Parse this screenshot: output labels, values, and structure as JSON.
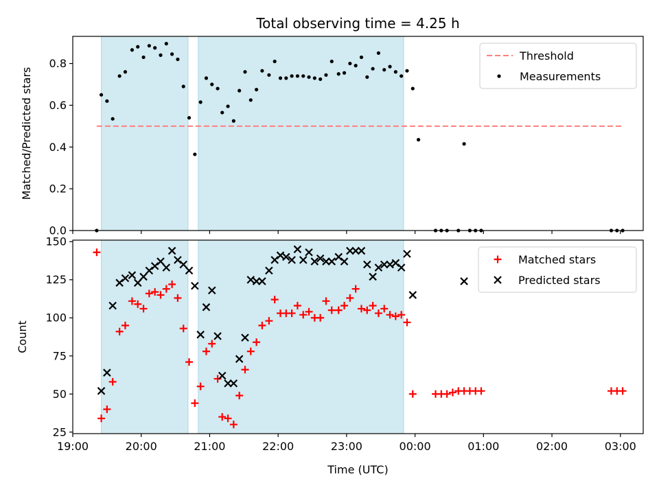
{
  "colors": {
    "shade": "#add8e6",
    "threshold": "#ff7f7f",
    "measurements": "#000000",
    "matched": "#ff0000",
    "predicted": "#000000"
  },
  "chart_data": [
    {
      "type": "scatter",
      "title": "Total observing time = 4.25 h",
      "ylabel": "Matched/Predicted stars",
      "xlabel": "",
      "xlim": [
        "19:00",
        "03:20"
      ],
      "ylim": [
        0,
        0.93
      ],
      "yticks": [
        0.0,
        0.2,
        0.4,
        0.6,
        0.8
      ],
      "yticklabels": [
        "0.0",
        "0.2",
        "0.4",
        "0.6",
        "0.8"
      ],
      "shaded_intervals": [
        [
          "19:25",
          "20:41"
        ],
        [
          "20:50",
          "23:50"
        ]
      ],
      "threshold": {
        "name": "Threshold",
        "value": 0.5,
        "x_range": [
          "19:21",
          "03:01"
        ]
      },
      "legend": {
        "position": "upper right",
        "entries": [
          "Threshold",
          "Measurements"
        ]
      },
      "series": [
        {
          "name": "Measurements",
          "marker": "dot",
          "points": [
            [
              "19:21",
              0.0
            ],
            [
              "19:25",
              0.65
            ],
            [
              "19:30",
              0.62
            ],
            [
              "19:35",
              0.535
            ],
            [
              "19:41",
              0.74
            ],
            [
              "19:46",
              0.76
            ],
            [
              "19:52",
              0.865
            ],
            [
              "19:57",
              0.88
            ],
            [
              "20:02",
              0.83
            ],
            [
              "20:07",
              0.885
            ],
            [
              "20:12",
              0.875
            ],
            [
              "20:17",
              0.84
            ],
            [
              "20:22",
              0.895
            ],
            [
              "20:27",
              0.845
            ],
            [
              "20:32",
              0.82
            ],
            [
              "20:37",
              0.69
            ],
            [
              "20:42",
              0.54
            ],
            [
              "20:47",
              0.365
            ],
            [
              "20:52",
              0.615
            ],
            [
              "20:57",
              0.73
            ],
            [
              "21:02",
              0.7
            ],
            [
              "21:07",
              0.68
            ],
            [
              "21:11",
              0.565
            ],
            [
              "21:16",
              0.595
            ],
            [
              "21:21",
              0.525
            ],
            [
              "21:26",
              0.67
            ],
            [
              "21:31",
              0.76
            ],
            [
              "21:36",
              0.625
            ],
            [
              "21:41",
              0.675
            ],
            [
              "21:46",
              0.765
            ],
            [
              "21:52",
              0.745
            ],
            [
              "21:57",
              0.81
            ],
            [
              "22:02",
              0.73
            ],
            [
              "22:07",
              0.73
            ],
            [
              "22:12",
              0.74
            ],
            [
              "22:17",
              0.74
            ],
            [
              "22:22",
              0.74
            ],
            [
              "22:27",
              0.735
            ],
            [
              "22:32",
              0.73
            ],
            [
              "22:37",
              0.725
            ],
            [
              "22:42",
              0.745
            ],
            [
              "22:47",
              0.81
            ],
            [
              "22:53",
              0.75
            ],
            [
              "22:58",
              0.755
            ],
            [
              "23:03",
              0.8
            ],
            [
              "23:08",
              0.79
            ],
            [
              "23:13",
              0.83
            ],
            [
              "23:18",
              0.735
            ],
            [
              "23:23",
              0.775
            ],
            [
              "23:28",
              0.85
            ],
            [
              "23:33",
              0.77
            ],
            [
              "23:38",
              0.785
            ],
            [
              "23:43",
              0.76
            ],
            [
              "23:48",
              0.74
            ],
            [
              "23:53",
              0.765
            ],
            [
              "23:58",
              0.68
            ],
            [
              "00:03",
              0.435
            ],
            [
              "00:18",
              0.0
            ],
            [
              "00:23",
              0.0
            ],
            [
              "00:28",
              0.0
            ],
            [
              "00:38",
              0.0
            ],
            [
              "00:43",
              0.415
            ],
            [
              "00:48",
              0.0
            ],
            [
              "00:53",
              0.0
            ],
            [
              "00:58",
              0.0
            ],
            [
              "02:52",
              0.0
            ],
            [
              "02:57",
              0.0
            ],
            [
              "03:02",
              0.0
            ]
          ]
        }
      ]
    },
    {
      "type": "scatter",
      "title": "",
      "ylabel": "Count",
      "xlabel": "Time (UTC)",
      "xlim": [
        "19:00",
        "03:20"
      ],
      "ylim": [
        24,
        151
      ],
      "yticks": [
        25,
        50,
        75,
        100,
        125,
        150
      ],
      "yticklabels": [
        "25",
        "50",
        "75",
        "100",
        "125",
        "150"
      ],
      "xticks": [
        "19:00",
        "20:00",
        "21:00",
        "22:00",
        "23:00",
        "00:00",
        "01:00",
        "02:00",
        "03:00"
      ],
      "shaded_intervals": [
        [
          "19:25",
          "20:41"
        ],
        [
          "20:50",
          "23:50"
        ]
      ],
      "legend": {
        "position": "upper right",
        "entries": [
          "Matched stars",
          "Predicted stars"
        ]
      },
      "series": [
        {
          "name": "Matched stars",
          "marker": "plus",
          "points": [
            [
              "19:21",
              143
            ],
            [
              "19:25",
              34
            ],
            [
              "19:30",
              40
            ],
            [
              "19:35",
              58
            ],
            [
              "19:41",
              91
            ],
            [
              "19:46",
              95
            ],
            [
              "19:52",
              111
            ],
            [
              "19:57",
              109
            ],
            [
              "20:02",
              106
            ],
            [
              "20:07",
              116
            ],
            [
              "20:12",
              117
            ],
            [
              "20:17",
              115
            ],
            [
              "20:22",
              119
            ],
            [
              "20:27",
              122
            ],
            [
              "20:32",
              113
            ],
            [
              "20:37",
              93
            ],
            [
              "20:42",
              71
            ],
            [
              "20:47",
              44
            ],
            [
              "20:52",
              55
            ],
            [
              "20:57",
              78
            ],
            [
              "21:02",
              83
            ],
            [
              "21:07",
              60
            ],
            [
              "21:11",
              35
            ],
            [
              "21:16",
              34
            ],
            [
              "21:21",
              30
            ],
            [
              "21:26",
              49
            ],
            [
              "21:31",
              66
            ],
            [
              "21:36",
              78
            ],
            [
              "21:41",
              84
            ],
            [
              "21:46",
              95
            ],
            [
              "21:52",
              98
            ],
            [
              "21:57",
              112
            ],
            [
              "22:02",
              103
            ],
            [
              "22:07",
              103
            ],
            [
              "22:12",
              103
            ],
            [
              "22:17",
              108
            ],
            [
              "22:22",
              102
            ],
            [
              "22:27",
              104
            ],
            [
              "22:32",
              100
            ],
            [
              "22:37",
              100
            ],
            [
              "22:42",
              111
            ],
            [
              "22:47",
              105
            ],
            [
              "22:53",
              105
            ],
            [
              "22:58",
              108
            ],
            [
              "23:03",
              113
            ],
            [
              "23:08",
              119
            ],
            [
              "23:13",
              106
            ],
            [
              "23:18",
              105
            ],
            [
              "23:23",
              108
            ],
            [
              "23:28",
              103
            ],
            [
              "23:33",
              106
            ],
            [
              "23:38",
              102
            ],
            [
              "23:43",
              101
            ],
            [
              "23:48",
              102
            ],
            [
              "23:53",
              97
            ],
            [
              "23:58",
              50
            ],
            [
              "00:18",
              50
            ],
            [
              "00:23",
              50
            ],
            [
              "00:28",
              50
            ],
            [
              "00:33",
              51
            ],
            [
              "00:38",
              52
            ],
            [
              "00:43",
              52
            ],
            [
              "00:48",
              52
            ],
            [
              "00:53",
              52
            ],
            [
              "00:58",
              52
            ],
            [
              "02:52",
              52
            ],
            [
              "02:57",
              52
            ],
            [
              "03:02",
              52
            ]
          ]
        },
        {
          "name": "Predicted stars",
          "marker": "x",
          "points": [
            [
              "19:25",
              52
            ],
            [
              "19:30",
              64
            ],
            [
              "19:35",
              108
            ],
            [
              "19:41",
              123
            ],
            [
              "19:46",
              126
            ],
            [
              "19:52",
              128
            ],
            [
              "19:57",
              123
            ],
            [
              "20:02",
              127
            ],
            [
              "20:07",
              131
            ],
            [
              "20:12",
              134
            ],
            [
              "20:17",
              137
            ],
            [
              "20:22",
              133
            ],
            [
              "20:27",
              144
            ],
            [
              "20:32",
              138
            ],
            [
              "20:37",
              135
            ],
            [
              "20:42",
              131
            ],
            [
              "20:47",
              121
            ],
            [
              "20:52",
              89
            ],
            [
              "20:57",
              107
            ],
            [
              "21:02",
              118
            ],
            [
              "21:07",
              88
            ],
            [
              "21:11",
              62
            ],
            [
              "21:16",
              57
            ],
            [
              "21:21",
              57
            ],
            [
              "21:26",
              73
            ],
            [
              "21:31",
              87
            ],
            [
              "21:36",
              125
            ],
            [
              "21:41",
              124
            ],
            [
              "21:46",
              124
            ],
            [
              "21:52",
              131
            ],
            [
              "21:57",
              138
            ],
            [
              "22:02",
              141
            ],
            [
              "22:07",
              140
            ],
            [
              "22:12",
              138
            ],
            [
              "22:17",
              145
            ],
            [
              "22:22",
              138
            ],
            [
              "22:27",
              143
            ],
            [
              "22:32",
              137
            ],
            [
              "22:37",
              139
            ],
            [
              "22:42",
              137
            ],
            [
              "22:47",
              137
            ],
            [
              "22:53",
              140
            ],
            [
              "22:58",
              137
            ],
            [
              "23:03",
              144
            ],
            [
              "23:08",
              144
            ],
            [
              "23:13",
              144
            ],
            [
              "23:18",
              135
            ],
            [
              "23:23",
              127
            ],
            [
              "23:28",
              133
            ],
            [
              "23:33",
              135
            ],
            [
              "23:38",
              135
            ],
            [
              "23:43",
              136
            ],
            [
              "23:48",
              133
            ],
            [
              "23:53",
              142
            ],
            [
              "23:58",
              115
            ],
            [
              "00:43",
              124
            ]
          ]
        }
      ]
    }
  ]
}
